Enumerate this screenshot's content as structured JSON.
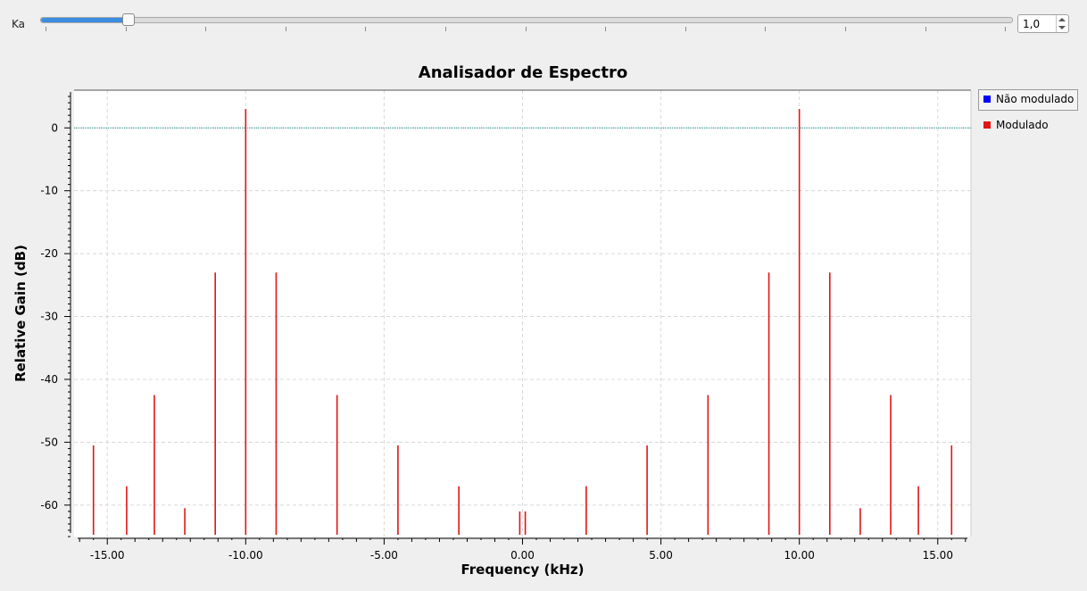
{
  "control": {
    "label": "Ka",
    "value": "1,0",
    "slider_fraction": 0.088
  },
  "chart_data": {
    "type": "line",
    "title": "Analisador de Espectro",
    "xlabel": "Frequency (kHz)",
    "ylabel": "Relative Gain (dB)",
    "xlim": [
      -16.2,
      16.2
    ],
    "ylim": [
      -65,
      6
    ],
    "x_ticks": [
      -15.0,
      -10.0,
      -5.0,
      0.0,
      5.0,
      10.0,
      15.0
    ],
    "x_tick_labels": [
      "-15.00",
      "-10.00",
      "-5.00",
      "0.00",
      "5.00",
      "10.00",
      "15.00"
    ],
    "y_ticks": [
      0,
      -10,
      -20,
      -30,
      -40,
      -50,
      -60
    ],
    "y_tick_labels": [
      "0",
      "-10",
      "-20",
      "-30",
      "-40",
      "-50",
      "-60"
    ],
    "grid": true,
    "legend_position": "top-right",
    "series": [
      {
        "name": "Não modulado",
        "color": "#0000ff",
        "display": "hline",
        "value": 0,
        "line_color": "#1f8a8a"
      },
      {
        "name": "Modulado",
        "color": "#e31414",
        "display": "spikes",
        "x": [
          -15.5,
          -14.3,
          -13.3,
          -12.2,
          -11.1,
          -10.0,
          -8.9,
          -6.7,
          -4.5,
          -2.3,
          -0.1,
          0.1,
          2.3,
          4.5,
          6.7,
          8.9,
          10.0,
          11.1,
          12.2,
          13.3,
          14.3,
          15.5
        ],
        "y": [
          -50.5,
          -57,
          -42.5,
          -60.5,
          -23,
          3,
          -23,
          -42.5,
          -50.5,
          -57,
          -61,
          -61,
          -57,
          -50.5,
          -42.5,
          -23,
          3,
          -23,
          -60.5,
          -42.5,
          -57,
          -50.5
        ]
      }
    ]
  }
}
